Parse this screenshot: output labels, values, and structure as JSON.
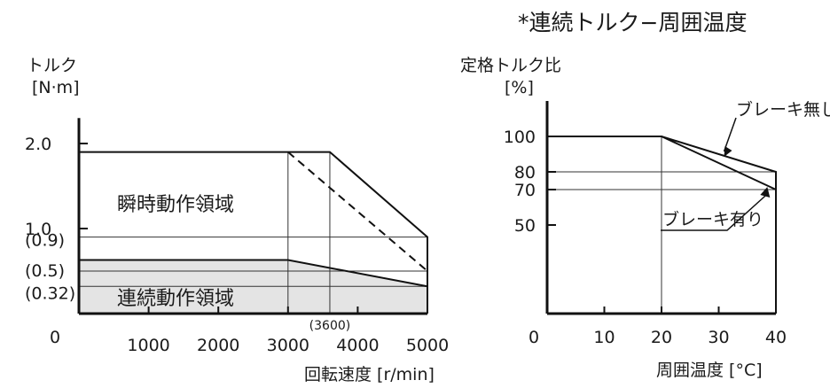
{
  "page_title": "*連続トルク−周囲温度",
  "chart_data": [
    {
      "type": "line",
      "ylabel": "トルク",
      "yunit": "[N·m]",
      "xlabel": "回転速度 [r/min]",
      "xlim": [
        0,
        5000
      ],
      "ylim": [
        0,
        2.3
      ],
      "origin_label": "0",
      "x_ticks": [
        1000,
        2000,
        3000,
        4000,
        5000
      ],
      "x_tick_labels": [
        "1000",
        "2000",
        "3000",
        "4000",
        "5000"
      ],
      "y_ticks": [
        2.0,
        1.0
      ],
      "y_tick_labels": [
        "2.0",
        "1.0"
      ],
      "y_marks": [
        0.9,
        0.5,
        0.32
      ],
      "y_mark_labels": [
        "(0.9)",
        "(0.5)",
        "(0.32)"
      ],
      "x_mark_label": "(3600)",
      "regions": {
        "instantaneous": "瞬時動作領域",
        "continuous": "連続動作領域"
      },
      "series": [
        {
          "x": [
            0,
            3600,
            5000,
            5000
          ],
          "y": [
            1.9,
            1.9,
            0.9,
            0
          ]
        },
        {
          "x": [
            3000,
            5000
          ],
          "y": [
            1.9,
            0.5
          ]
        },
        {
          "x": [
            0,
            3000,
            5000
          ],
          "y": [
            0.63,
            0.63,
            0.32
          ]
        }
      ]
    },
    {
      "type": "line",
      "ylabel": "定格トルク比",
      "yunit": "[%]",
      "xlabel": "周囲温度 [°C]",
      "xlim": [
        0,
        40
      ],
      "ylim": [
        0,
        120
      ],
      "origin_label": "0",
      "x_ticks": [
        10,
        20,
        30,
        40
      ],
      "x_tick_labels": [
        "10",
        "20",
        "30",
        "40"
      ],
      "y_ticks": [
        100,
        80,
        70,
        50
      ],
      "y_tick_labels": [
        "100",
        "80",
        "70",
        "50"
      ],
      "series": [
        {
          "name": "ブレーキ無し",
          "x": [
            0,
            20,
            40,
            40
          ],
          "y": [
            100,
            100,
            80,
            0
          ]
        },
        {
          "name": "ブレーキ有り",
          "x": [
            20,
            40
          ],
          "y": [
            100,
            70
          ]
        }
      ]
    }
  ]
}
